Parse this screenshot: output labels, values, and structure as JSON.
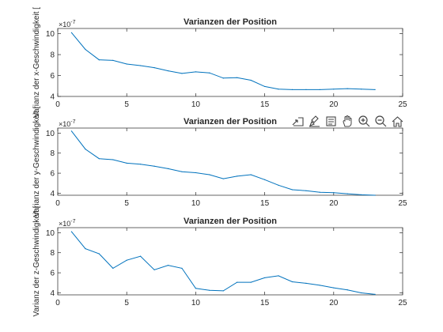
{
  "chart_data": [
    {
      "type": "line",
      "title": "Varianzen der Position",
      "ylabel": "Varianz der x-Geschwindigkeit [",
      "exponent_label": "×10",
      "exponent": "-7",
      "xlim": [
        0,
        25
      ],
      "ylim": [
        4,
        10.5
      ],
      "xticks": [
        0,
        5,
        10,
        15,
        20,
        25
      ],
      "yticks": [
        4,
        6,
        8,
        10
      ],
      "line_color": "#0072BD",
      "series": [
        {
          "x": [
            1,
            2,
            3,
            4,
            5,
            6,
            7,
            8,
            9,
            10,
            11,
            12,
            13,
            14,
            15,
            16,
            17,
            18,
            19,
            20,
            21,
            22,
            23
          ],
          "y": [
            10.1,
            8.5,
            7.5,
            7.45,
            7.1,
            6.95,
            6.75,
            6.45,
            6.2,
            6.35,
            6.25,
            5.75,
            5.8,
            5.55,
            4.95,
            4.7,
            4.65,
            4.65,
            4.65,
            4.7,
            4.75,
            4.7,
            4.65
          ]
        }
      ]
    },
    {
      "type": "line",
      "title": "Varianzen der Position",
      "ylabel": "Varianz der y-Geschwindigkeit [",
      "exponent_label": "×10",
      "exponent": "-7",
      "xlim": [
        0,
        25
      ],
      "ylim": [
        3.8,
        10.5
      ],
      "xticks": [
        0,
        5,
        10,
        15,
        20,
        25
      ],
      "yticks": [
        4,
        6,
        8,
        10
      ],
      "line_color": "#0072BD",
      "series": [
        {
          "x": [
            1,
            2,
            3,
            4,
            5,
            6,
            7,
            8,
            9,
            10,
            11,
            12,
            13,
            14,
            15,
            16,
            17,
            18,
            19,
            20,
            21,
            22,
            23
          ],
          "y": [
            10.2,
            8.4,
            7.45,
            7.35,
            7.0,
            6.9,
            6.7,
            6.45,
            6.15,
            6.05,
            5.85,
            5.45,
            5.7,
            5.85,
            5.35,
            4.8,
            4.35,
            4.25,
            4.1,
            4.05,
            3.95,
            3.85,
            3.8
          ]
        }
      ]
    },
    {
      "type": "line",
      "title": "Varianzen der Position",
      "ylabel": "Varianz der z-Geschwindigkeit [",
      "exponent_label": "×10",
      "exponent": "-7",
      "xlim": [
        0,
        25
      ],
      "ylim": [
        3.8,
        10.5
      ],
      "xticks": [
        0,
        5,
        10,
        15,
        20,
        25
      ],
      "yticks": [
        4,
        6,
        8,
        10
      ],
      "line_color": "#0072BD",
      "series": [
        {
          "x": [
            1,
            2,
            3,
            4,
            5,
            6,
            7,
            8,
            9,
            10,
            11,
            12,
            13,
            14,
            15,
            16,
            17,
            18,
            19,
            20,
            21,
            22,
            23
          ],
          "y": [
            10.1,
            8.4,
            7.9,
            6.45,
            7.25,
            7.65,
            6.3,
            6.75,
            6.45,
            4.45,
            4.25,
            4.2,
            5.05,
            5.05,
            5.5,
            5.7,
            5.1,
            4.95,
            4.75,
            4.5,
            4.3,
            4.0,
            3.85
          ]
        }
      ]
    }
  ],
  "toolbar": {
    "icons": [
      "export-icon",
      "brush-icon",
      "datatip-icon",
      "pan-icon",
      "zoom-in-icon",
      "zoom-out-icon",
      "home-icon"
    ]
  }
}
